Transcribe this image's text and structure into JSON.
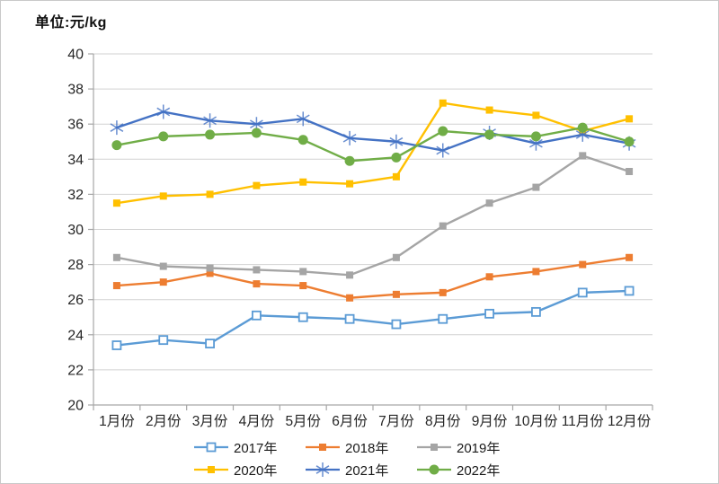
{
  "chart_data": {
    "type": "line",
    "title": "单位:元/kg",
    "categories": [
      "1月份",
      "2月份",
      "3月份",
      "4月份",
      "5月份",
      "6月份",
      "7月份",
      "8月份",
      "9月份",
      "10月份",
      "11月份",
      "12月份"
    ],
    "series": [
      {
        "name": "2017年",
        "color": "#5B9BD5",
        "marker": "open-square",
        "values": [
          23.4,
          23.7,
          23.5,
          25.1,
          25.0,
          24.9,
          24.6,
          24.9,
          25.2,
          25.3,
          26.4,
          26.5
        ]
      },
      {
        "name": "2018年",
        "color": "#ED7D31",
        "marker": "square",
        "values": [
          26.8,
          27.0,
          27.5,
          26.9,
          26.8,
          26.1,
          26.3,
          26.4,
          27.3,
          27.6,
          28.0,
          28.4
        ]
      },
      {
        "name": "2019年",
        "color": "#A5A5A5",
        "marker": "square",
        "values": [
          28.4,
          27.9,
          27.8,
          27.7,
          27.6,
          27.4,
          28.4,
          30.2,
          31.5,
          32.4,
          34.2,
          33.3
        ]
      },
      {
        "name": "2020年",
        "color": "#FFC000",
        "marker": "square",
        "values": [
          31.5,
          31.9,
          32.0,
          32.5,
          32.7,
          32.6,
          33.0,
          37.2,
          36.8,
          36.5,
          35.6,
          36.3
        ]
      },
      {
        "name": "2021年",
        "color": "#4472C4",
        "marker": "asterisk",
        "values": [
          35.8,
          36.7,
          36.2,
          36.0,
          36.3,
          35.2,
          35.0,
          34.5,
          35.5,
          34.9,
          35.4,
          34.9
        ]
      },
      {
        "name": "2022年",
        "color": "#70AD47",
        "marker": "circle",
        "values": [
          34.8,
          35.3,
          35.4,
          35.5,
          35.1,
          33.9,
          34.1,
          35.6,
          35.4,
          35.3,
          35.8,
          35.0
        ]
      }
    ],
    "ylim": [
      20,
      40
    ],
    "ytick_step": 2,
    "grid": true,
    "legend_position": "bottom",
    "legend_rows": [
      [
        "2017年",
        "2018年",
        "2019年"
      ],
      [
        "2020年",
        "2021年",
        "2022年"
      ]
    ],
    "colors": {
      "gridline": "#D2D2D2",
      "axis": "#A6A6A6",
      "text": "#262626"
    }
  }
}
